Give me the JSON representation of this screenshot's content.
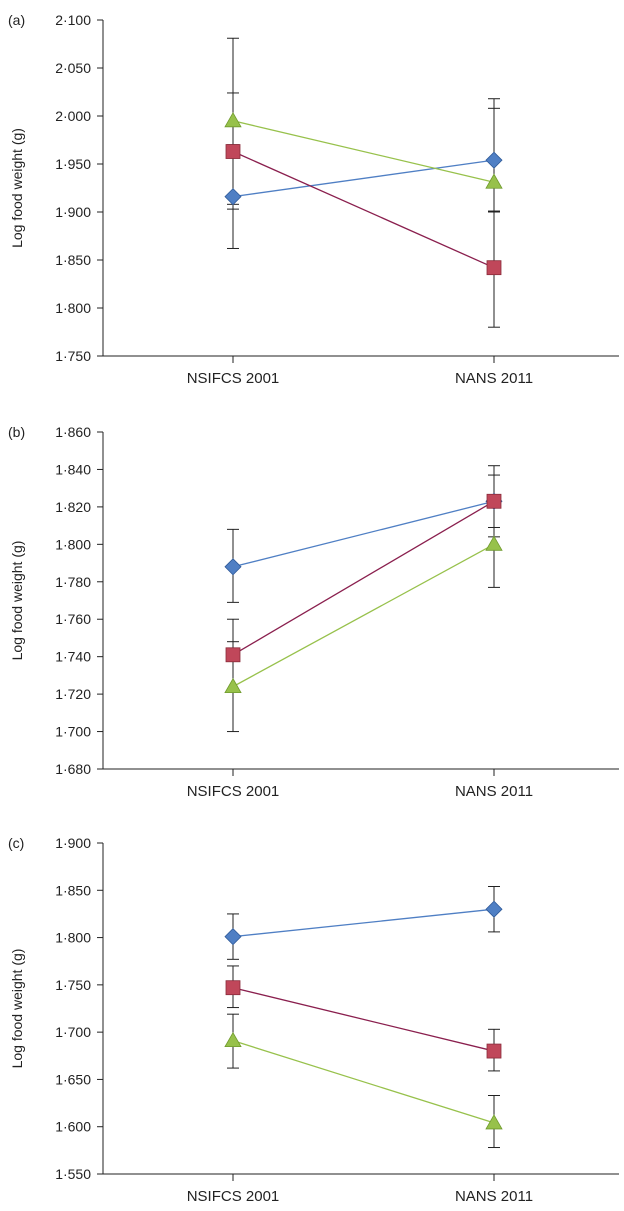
{
  "colors": {
    "blue": "#4f7fc4",
    "red": "#c0475a",
    "green": "#97c14b",
    "line_red": "#8a1f4e",
    "axis": "#222222",
    "err": "#222222"
  },
  "chart_data": [
    {
      "type": "line",
      "panel_label": "(a)",
      "ylabel": "Log food weight (g)",
      "categories": [
        "NSIFCS 2001",
        "NANS 2011"
      ],
      "yticks": [
        "1·750",
        "1·800",
        "1·850",
        "1·900",
        "1·950",
        "2·000",
        "2·050",
        "2·100"
      ],
      "ylim": [
        1.75,
        2.1
      ],
      "series": [
        {
          "marker": "diamond",
          "color": "#4f7fc4",
          "line_color": "#4f7fc4",
          "values": [
            1.916,
            1.954
          ],
          "err_low": [
            1.862,
            1.9
          ],
          "err_high": [
            1.97,
            2.008
          ]
        },
        {
          "marker": "square",
          "color": "#c0475a",
          "line_color": "#8a1f4e",
          "values": [
            1.963,
            1.842
          ],
          "err_low": [
            1.903,
            1.78
          ],
          "err_high": [
            2.024,
            1.901
          ]
        },
        {
          "marker": "triangle",
          "color": "#97c14b",
          "line_color": "#97c14b",
          "values": [
            1.995,
            1.931
          ],
          "err_low": [
            1.908,
            1.845
          ],
          "err_high": [
            2.081,
            2.018
          ]
        }
      ]
    },
    {
      "type": "line",
      "panel_label": "(b)",
      "ylabel": "Log food weight (g)",
      "categories": [
        "NSIFCS 2001",
        "NANS 2011"
      ],
      "yticks": [
        "1·680",
        "1·700",
        "1·720",
        "1·740",
        "1·760",
        "1·780",
        "1·800",
        "1·820",
        "1·840",
        "1·860"
      ],
      "ylim": [
        1.68,
        1.86
      ],
      "series": [
        {
          "marker": "diamond",
          "color": "#4f7fc4",
          "line_color": "#4f7fc4",
          "values": [
            1.788,
            1.823
          ],
          "err_low": [
            1.769,
            1.804
          ],
          "err_high": [
            1.808,
            1.842
          ]
        },
        {
          "marker": "square",
          "color": "#c0475a",
          "line_color": "#8a1f4e",
          "values": [
            1.741,
            1.823
          ],
          "err_low": [
            1.722,
            1.809
          ],
          "err_high": [
            1.76,
            1.837
          ]
        },
        {
          "marker": "triangle",
          "color": "#97c14b",
          "line_color": "#97c14b",
          "values": [
            1.724,
            1.8
          ],
          "err_low": [
            1.7,
            1.777
          ],
          "err_high": [
            1.748,
            1.823
          ]
        }
      ]
    },
    {
      "type": "line",
      "panel_label": "(c)",
      "ylabel": "Log food weight (g)",
      "categories": [
        "NSIFCS 2001",
        "NANS 2011"
      ],
      "yticks": [
        "1·550",
        "1·600",
        "1·650",
        "1·700",
        "1·750",
        "1·800",
        "1·850",
        "1·900"
      ],
      "ylim": [
        1.55,
        1.9
      ],
      "series": [
        {
          "marker": "diamond",
          "color": "#4f7fc4",
          "line_color": "#4f7fc4",
          "values": [
            1.801,
            1.83
          ],
          "err_low": [
            1.777,
            1.806
          ],
          "err_high": [
            1.825,
            1.854
          ]
        },
        {
          "marker": "square",
          "color": "#c0475a",
          "line_color": "#8a1f4e",
          "values": [
            1.747,
            1.68
          ],
          "err_low": [
            1.726,
            1.659
          ],
          "err_high": [
            1.77,
            1.703
          ]
        },
        {
          "marker": "triangle",
          "color": "#97c14b",
          "line_color": "#97c14b",
          "values": [
            1.691,
            1.604
          ],
          "err_low": [
            1.662,
            1.578
          ],
          "err_high": [
            1.719,
            1.633
          ]
        }
      ]
    }
  ]
}
